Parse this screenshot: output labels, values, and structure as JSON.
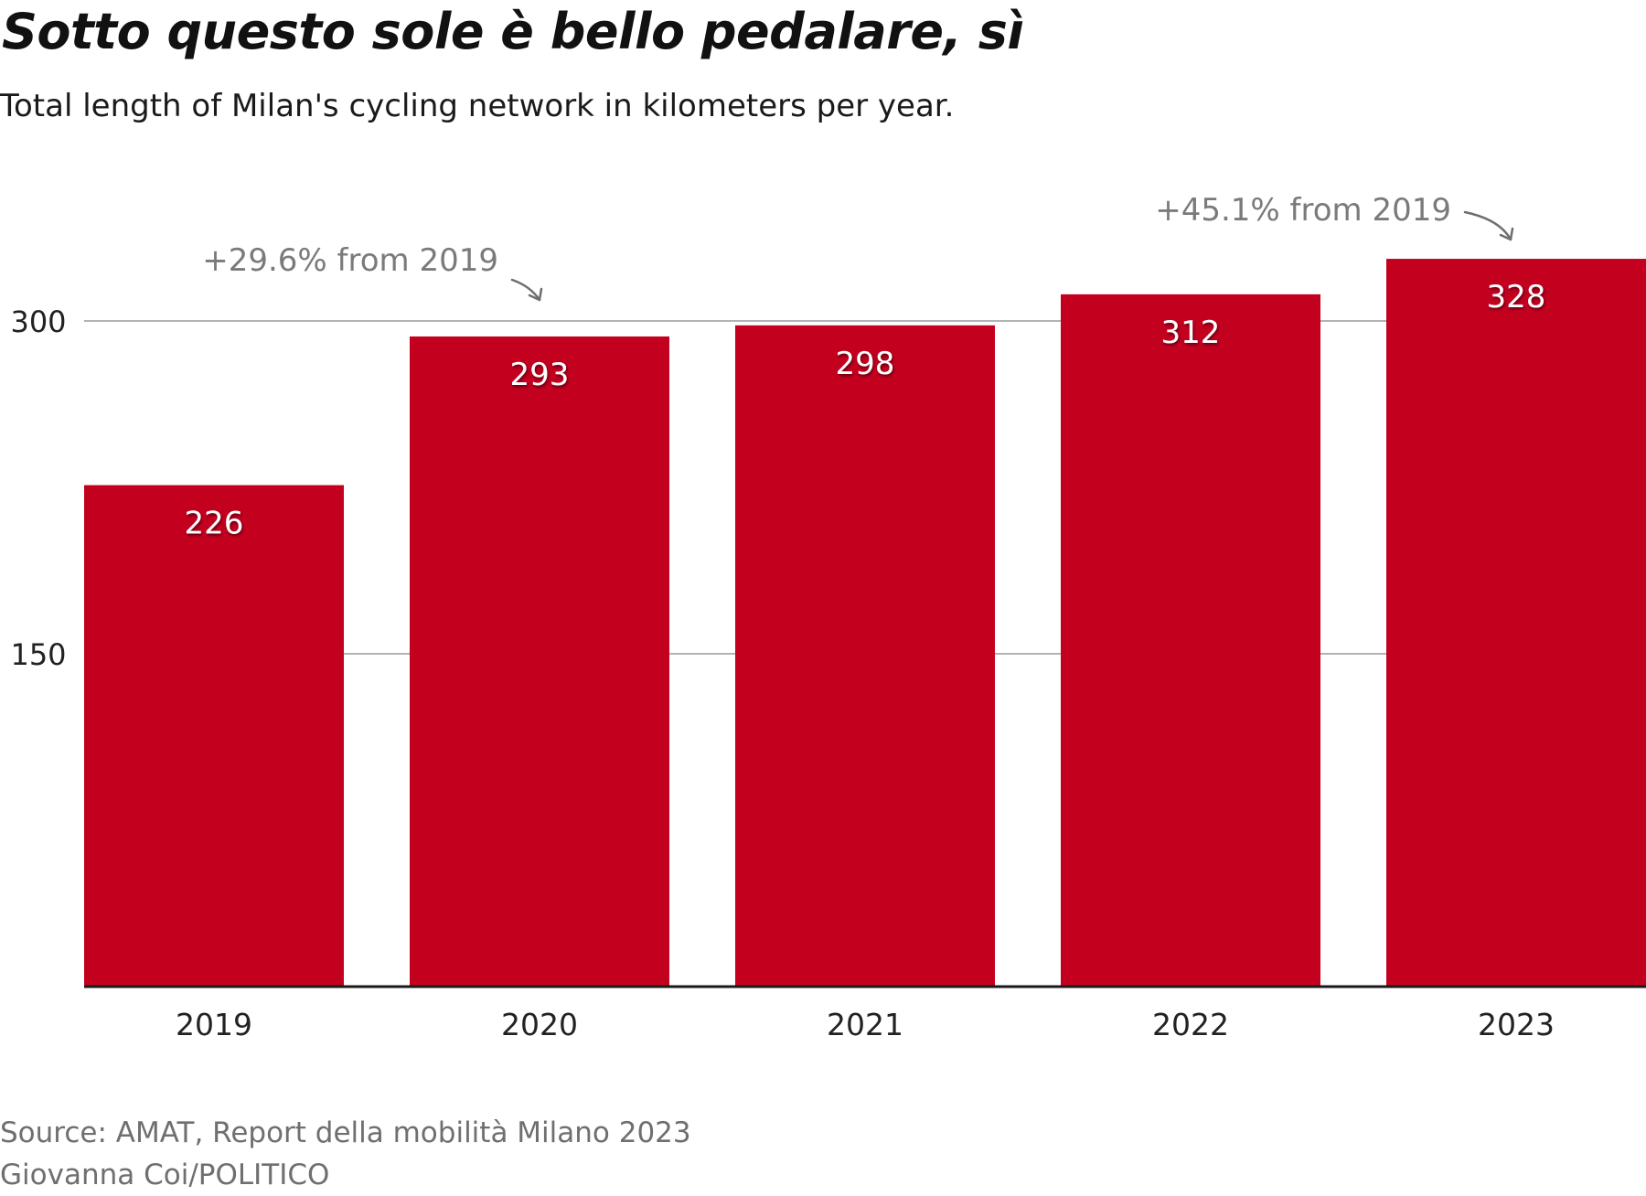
{
  "title": "Sotto questo sole è bello pedalare, sì",
  "subtitle": "Total length of Milan's cycling network in kilometers per year.",
  "chart_data": {
    "type": "bar",
    "categories": [
      "2019",
      "2020",
      "2021",
      "2022",
      "2023"
    ],
    "values": [
      226,
      293,
      298,
      312,
      328
    ],
    "data_labels": [
      "226",
      "293",
      "298",
      "312",
      "328"
    ],
    "yticks": [
      150,
      300
    ],
    "ytick_labels": [
      "150",
      "300"
    ],
    "ylim": [
      0,
      350
    ],
    "grid": "horizontal",
    "bar_color": "#c4001f",
    "annotations": [
      {
        "text": "+29.6% from 2019",
        "category": "2020"
      },
      {
        "text": "+45.1% from 2019",
        "category": "2023"
      }
    ]
  },
  "footer": {
    "source": "Source: AMAT, Report della mobilità Milano 2023",
    "credit": "Giovanna Coi/POLITICO"
  }
}
